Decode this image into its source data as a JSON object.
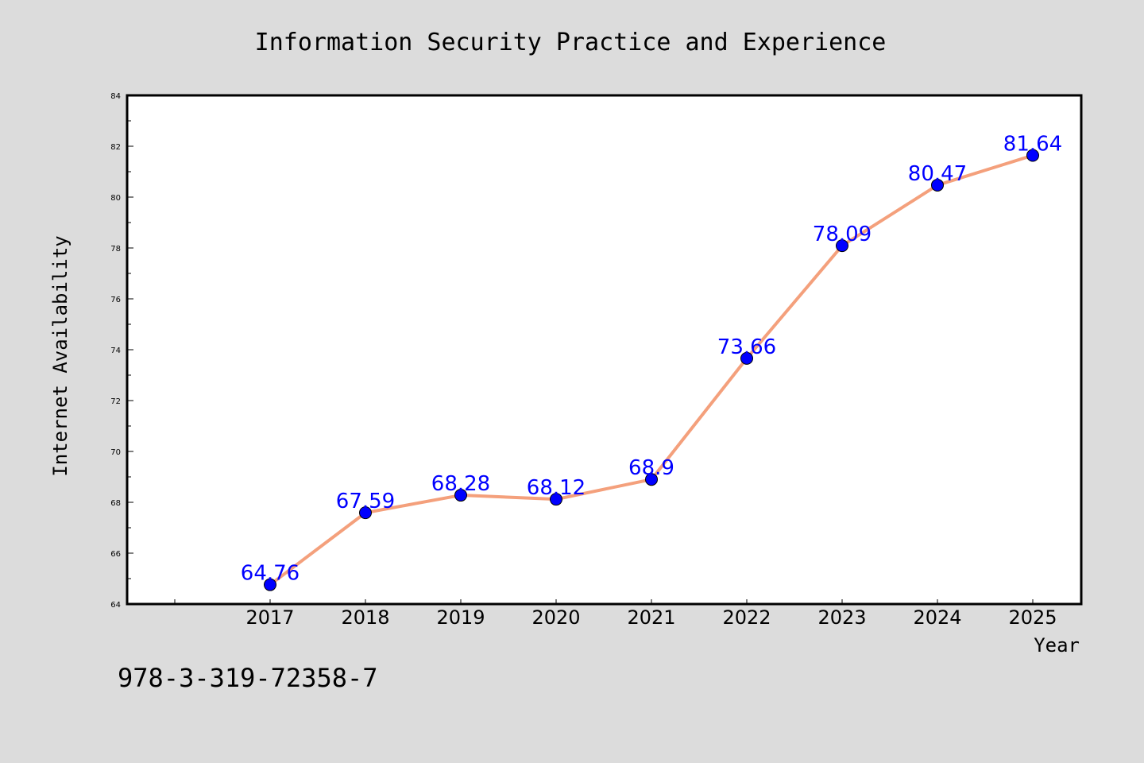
{
  "chart_data": {
    "type": "line",
    "title": "Information Security Practice and Experience",
    "xlabel": "Year",
    "ylabel": "Internet Availability",
    "categories": [
      "2017",
      "2018",
      "2019",
      "2020",
      "2021",
      "2022",
      "2023",
      "2024",
      "2025"
    ],
    "values": [
      64.76,
      67.59,
      68.28,
      68.12,
      68.9,
      73.66,
      78.09,
      80.47,
      81.64
    ],
    "data_labels": [
      "64.76",
      "67.59",
      "68.28",
      "68.12",
      "68.9",
      "73.66",
      "78.09",
      "80.47",
      "81.64"
    ],
    "ylim": [
      64,
      84
    ],
    "yticks": [
      64,
      66,
      68,
      70,
      72,
      74,
      76,
      78,
      80,
      82,
      84
    ],
    "grid": false,
    "legend": "none",
    "line_color": "#f4a07c",
    "marker_color": "#0000ff",
    "label_color": "#0000ff"
  },
  "footer": {
    "isbn": "978-3-319-72358-7"
  }
}
